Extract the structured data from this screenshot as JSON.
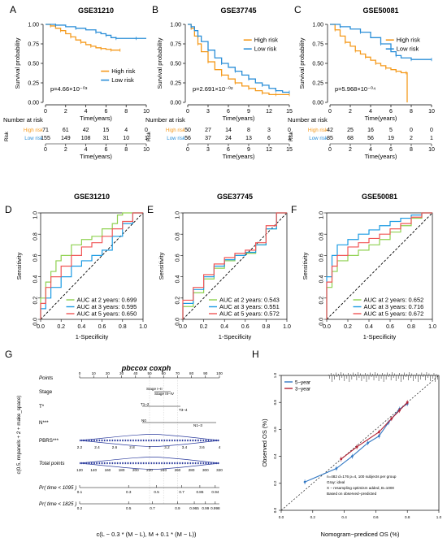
{
  "panels": [
    {
      "letter": "A",
      "title": "GSE31210",
      "xlabel": "Time(years)",
      "ylabel": "Survival probability",
      "xlim": [
        0,
        10
      ],
      "xticks": [
        0,
        2,
        4,
        6,
        8,
        10
      ],
      "ylim": [
        0,
        1
      ],
      "yticks": [
        "0.00",
        "0.25",
        "0.50",
        "0.75",
        "1.00"
      ],
      "legend": [
        "High risk",
        "Low risk"
      ],
      "pvalue": "p=4.66×10⁻⁰³",
      "risk_title": "Number at risk",
      "risk_ylabel": "Risk",
      "risk_rows": [
        {
          "label": "High risk",
          "values": [
            71,
            61,
            42,
            15,
            4,
            0
          ]
        },
        {
          "label": "Low risk",
          "values": [
            155,
            149,
            108,
            31,
            10,
            1
          ]
        }
      ]
    },
    {
      "letter": "B",
      "title": "GSE37745",
      "xlabel": "Time(years)",
      "ylabel": "Survival probability",
      "xlim": [
        0,
        15
      ],
      "xticks": [
        0,
        3,
        6,
        9,
        12,
        15
      ],
      "ylim": [
        0,
        1
      ],
      "yticks": [
        "0.00",
        "0.25",
        "0.50",
        "0.75",
        "1.00"
      ],
      "legend": [
        "High risk",
        "Low risk"
      ],
      "pvalue": "p=2.691×10⁻⁰²",
      "risk_title": "Number at risk",
      "risk_ylabel": "Risk",
      "risk_rows": [
        {
          "label": "High risk",
          "values": [
            50,
            27,
            14,
            8,
            3,
            0
          ]
        },
        {
          "label": "Low risk",
          "values": [
            56,
            37,
            24,
            13,
            6,
            1
          ]
        }
      ]
    },
    {
      "letter": "C",
      "title": "GSE50081",
      "xlabel": "Time(years)",
      "ylabel": "Survival probability",
      "xlim": [
        0,
        10
      ],
      "xticks": [
        0,
        2,
        4,
        6,
        8,
        10
      ],
      "ylim": [
        0,
        1
      ],
      "yticks": [
        "0.00",
        "0.25",
        "0.50",
        "0.75",
        "1.00"
      ],
      "legend": [
        "High risk",
        "Low risk"
      ],
      "pvalue": "p=5.968×10⁻⁰⁴",
      "risk_title": "Number at risk",
      "risk_ylabel": "Risk",
      "risk_rows": [
        {
          "label": "High risk",
          "values": [
            42,
            25,
            16,
            5,
            0,
            0
          ]
        },
        {
          "label": "Low risk",
          "values": [
            85,
            68,
            56,
            19,
            2,
            1
          ]
        }
      ]
    }
  ],
  "roc_panels": [
    {
      "letter": "D",
      "title": "GSE31210",
      "xlabel": "1-Specificity",
      "ylabel": "Sensitivity",
      "ticks": [
        "0.0",
        "0.2",
        "0.4",
        "0.6",
        "0.8",
        "1.0"
      ],
      "auc": [
        "AUC at 2 years: 0.699",
        "AUC at 3 years: 0.595",
        "AUC at 5 years: 0.650"
      ]
    },
    {
      "letter": "E",
      "title": "GSE37745",
      "xlabel": "1-Specificity",
      "ylabel": "Sensitivity",
      "ticks": [
        "0.0",
        "0.2",
        "0.4",
        "0.6",
        "0.8",
        "1.0"
      ],
      "auc": [
        "AUC at 2 years: 0.543",
        "AUC at 3 years: 0.551",
        "AUC at 5 years: 0.572"
      ]
    },
    {
      "letter": "F",
      "title": "GSE50081",
      "xlabel": "1-Specificity",
      "ylabel": "Sensitivity",
      "ticks": [
        "0.0",
        "0.2",
        "0.4",
        "0.6",
        "0.8",
        "1.0"
      ],
      "auc": [
        "AUC at 2 years: 0.652",
        "AUC at 3 years: 0.716",
        "AUC at 5 years: 0.672"
      ]
    }
  ],
  "nomogram": {
    "letter": "G",
    "title": "pbccox coxph",
    "ylabel": "c(0.5, nnpanels + 2 + make_space)",
    "xlabel": "c(L − 0.3 * (M − L), M + 0.1 * (M − L))",
    "rows": {
      "points": {
        "label": "Points",
        "ticks": [
          "0",
          "10",
          "20",
          "30",
          "40",
          "50",
          "60",
          "70",
          "80",
          "90",
          "100"
        ]
      },
      "stage": {
        "label": "Stage",
        "ticks": [
          "Stage I–II",
          "Stage III–IV"
        ]
      },
      "t": {
        "label": "T*",
        "ticks": [
          "T1–2",
          "T3–4"
        ]
      },
      "n": {
        "label": "N***",
        "ticks": [
          "N0",
          "N1–3"
        ]
      },
      "pbrs": {
        "label": "PBRS***",
        "ticks": [
          "2.2",
          "2.4",
          "2.6",
          "2.8",
          "3",
          "3.2",
          "3.4",
          "3.6",
          "4"
        ]
      },
      "total": {
        "label": "Total points",
        "ticks": [
          "120",
          "140",
          "160",
          "180",
          "200",
          "220",
          "240",
          "260",
          "280",
          "300",
          "320"
        ]
      },
      "pr1095": {
        "label": "Pr( time < 1095 )",
        "ticks": [
          "0.1",
          "0.3",
          "0.5",
          "0.7",
          "0.86",
          "0.94"
        ]
      },
      "pr1825": {
        "label": "Pr( time < 1825 )",
        "ticks": [
          "0.2",
          "0.5",
          "0.7",
          "0.9",
          "0.965",
          "0.99",
          "0.998"
        ]
      }
    }
  },
  "calibration": {
    "letter": "H",
    "xlabel": "Nomogram−prediced OS (%)",
    "ylabel": "Observed OS (%)",
    "ticks": [
      "0.0",
      "0.2",
      "0.4",
      "0.6",
      "0.8",
      "1.0"
    ],
    "legend": [
      "5−year",
      "3−year"
    ],
    "notes": [
      "n=482 d=176 p=4, 100 subjects per group",
      "Gray: ideal",
      "X − resampling optimism added, B=1000",
      "Based on observed−predicted"
    ]
  },
  "chart_data": [
    {
      "type": "line",
      "panel": "A",
      "title": "GSE31210",
      "xlabel": "Time(years)",
      "ylabel": "Survival probability",
      "xlim": [
        0,
        10
      ],
      "ylim": [
        0,
        1
      ],
      "series": [
        {
          "name": "High risk",
          "x": [
            0,
            0.5,
            1,
            1.5,
            2,
            2.5,
            3,
            3.5,
            4,
            4.5,
            5,
            5.5,
            6,
            6.5,
            7,
            7.4
          ],
          "values": [
            1,
            0.98,
            0.95,
            0.92,
            0.88,
            0.84,
            0.8,
            0.77,
            0.74,
            0.72,
            0.7,
            0.69,
            0.68,
            0.67,
            0.67,
            0.67
          ]
        },
        {
          "name": "Low risk",
          "x": [
            0,
            1,
            2,
            3,
            4,
            5,
            5.5,
            6,
            6.5,
            7,
            8,
            9,
            10
          ],
          "values": [
            1,
            0.99,
            0.97,
            0.95,
            0.93,
            0.9,
            0.88,
            0.86,
            0.83,
            0.82,
            0.82,
            0.82,
            0.82
          ]
        }
      ]
    },
    {
      "type": "line",
      "panel": "B",
      "title": "GSE37745",
      "xlabel": "Time(years)",
      "ylabel": "Survival probability",
      "xlim": [
        0,
        15
      ],
      "ylim": [
        0,
        1
      ],
      "series": [
        {
          "name": "High risk",
          "x": [
            0,
            0.5,
            1,
            1.5,
            2,
            3,
            4,
            5,
            6,
            7,
            8,
            9,
            10,
            11,
            12,
            13,
            14,
            15
          ],
          "values": [
            1,
            0.95,
            0.85,
            0.75,
            0.65,
            0.52,
            0.42,
            0.35,
            0.3,
            0.25,
            0.21,
            0.18,
            0.15,
            0.12,
            0.1,
            0.1,
            0.1,
            0.1
          ]
        },
        {
          "name": "Low risk",
          "x": [
            0,
            0.5,
            1,
            1.5,
            2,
            3,
            4,
            5,
            6,
            7,
            8,
            9,
            10,
            11,
            12,
            13,
            14,
            15
          ],
          "values": [
            1,
            0.97,
            0.92,
            0.85,
            0.78,
            0.67,
            0.57,
            0.5,
            0.45,
            0.4,
            0.35,
            0.3,
            0.25,
            0.22,
            0.18,
            0.15,
            0.13,
            0.13
          ]
        }
      ]
    },
    {
      "type": "line",
      "panel": "C",
      "title": "GSE50081",
      "xlabel": "Time(years)",
      "ylabel": "Survival probability",
      "xlim": [
        0,
        10
      ],
      "ylim": [
        0,
        1
      ],
      "series": [
        {
          "name": "High risk",
          "x": [
            0,
            0.5,
            1,
            1.5,
            2,
            2.5,
            3,
            3.5,
            4,
            4.5,
            5,
            5.5,
            6,
            6.5,
            7,
            7.5,
            7.6
          ],
          "values": [
            1,
            0.93,
            0.85,
            0.77,
            0.72,
            0.66,
            0.62,
            0.58,
            0.54,
            0.5,
            0.47,
            0.44,
            0.42,
            0.4,
            0.38,
            0.38,
            0
          ]
        },
        {
          "name": "Low risk",
          "x": [
            0,
            1,
            2,
            3,
            4,
            5,
            6,
            6.5,
            7,
            8,
            9,
            10
          ],
          "values": [
            1,
            0.97,
            0.94,
            0.9,
            0.83,
            0.75,
            0.65,
            0.6,
            0.57,
            0.55,
            0.55,
            0.55
          ]
        }
      ]
    },
    {
      "type": "line",
      "panel": "D",
      "title": "GSE31210",
      "xlabel": "1-Specificity",
      "ylabel": "Sensitivity",
      "xlim": [
        0,
        1
      ],
      "ylim": [
        0,
        1
      ],
      "series": [
        {
          "name": "AUC at 2 years: 0.699",
          "x": [
            0,
            0.05,
            0.1,
            0.15,
            0.2,
            0.3,
            0.4,
            0.5,
            0.6,
            0.7,
            0.75,
            0.8,
            0.85,
            0.9,
            1
          ],
          "values": [
            0,
            0.2,
            0.35,
            0.45,
            0.55,
            0.6,
            0.7,
            0.75,
            0.78,
            0.85,
            0.9,
            0.98,
            1,
            1,
            1
          ]
        },
        {
          "name": "AUC at 3 years: 0.595",
          "x": [
            0,
            0.05,
            0.1,
            0.2,
            0.3,
            0.4,
            0.5,
            0.6,
            0.7,
            0.8,
            0.9,
            1
          ],
          "values": [
            0,
            0.1,
            0.2,
            0.3,
            0.4,
            0.5,
            0.55,
            0.6,
            0.65,
            0.78,
            0.9,
            1
          ]
        },
        {
          "name": "AUC at 5 years: 0.650",
          "x": [
            0,
            0.05,
            0.1,
            0.2,
            0.3,
            0.4,
            0.5,
            0.6,
            0.7,
            0.8,
            0.9,
            1
          ],
          "values": [
            0,
            0.15,
            0.3,
            0.4,
            0.5,
            0.6,
            0.68,
            0.72,
            0.78,
            0.85,
            0.92,
            1
          ]
        }
      ]
    },
    {
      "type": "line",
      "panel": "E",
      "title": "GSE37745",
      "xlabel": "1-Specificity",
      "ylabel": "Sensitivity",
      "xlim": [
        0,
        1
      ],
      "ylim": [
        0,
        1
      ],
      "series": [
        {
          "name": "AUC at 2 years: 0.543",
          "x": [
            0,
            0.1,
            0.2,
            0.3,
            0.4,
            0.5,
            0.6,
            0.7,
            0.8,
            0.9,
            1
          ],
          "values": [
            0,
            0.12,
            0.25,
            0.38,
            0.48,
            0.55,
            0.6,
            0.62,
            0.7,
            0.85,
            1
          ]
        },
        {
          "name": "AUC at 3 years: 0.551",
          "x": [
            0,
            0.1,
            0.2,
            0.3,
            0.4,
            0.5,
            0.6,
            0.7,
            0.8,
            0.9,
            1
          ],
          "values": [
            0,
            0.15,
            0.28,
            0.4,
            0.5,
            0.56,
            0.6,
            0.63,
            0.7,
            0.85,
            1
          ]
        },
        {
          "name": "AUC at 5 years: 0.572",
          "x": [
            0,
            0.1,
            0.2,
            0.3,
            0.4,
            0.5,
            0.6,
            0.7,
            0.8,
            0.9,
            1
          ],
          "values": [
            0,
            0.18,
            0.3,
            0.42,
            0.52,
            0.58,
            0.62,
            0.65,
            0.72,
            0.88,
            1
          ]
        }
      ]
    },
    {
      "type": "line",
      "panel": "F",
      "title": "GSE50081",
      "xlabel": "1-Specificity",
      "ylabel": "Sensitivity",
      "xlim": [
        0,
        1
      ],
      "ylim": [
        0,
        1
      ],
      "series": [
        {
          "name": "AUC at 2 years: 0.652",
          "x": [
            0,
            0.05,
            0.1,
            0.2,
            0.3,
            0.4,
            0.5,
            0.6,
            0.7,
            0.8,
            0.9,
            1
          ],
          "values": [
            0,
            0.3,
            0.45,
            0.55,
            0.6,
            0.65,
            0.7,
            0.75,
            0.82,
            0.88,
            0.95,
            1
          ]
        },
        {
          "name": "AUC at 3 years: 0.716",
          "x": [
            0,
            0.05,
            0.1,
            0.2,
            0.3,
            0.4,
            0.5,
            0.6,
            0.7,
            0.8,
            0.9,
            1
          ],
          "values": [
            0,
            0.4,
            0.6,
            0.7,
            0.75,
            0.8,
            0.84,
            0.88,
            0.92,
            0.95,
            0.98,
            1
          ]
        },
        {
          "name": "AUC at 5 years: 0.672",
          "x": [
            0,
            0.05,
            0.1,
            0.2,
            0.3,
            0.4,
            0.5,
            0.6,
            0.7,
            0.8,
            0.9,
            1
          ],
          "values": [
            0,
            0.35,
            0.5,
            0.6,
            0.68,
            0.72,
            0.76,
            0.8,
            0.85,
            0.9,
            0.96,
            1
          ]
        }
      ]
    },
    {
      "type": "line",
      "panel": "H",
      "xlabel": "Nomogram−prediced OS (%)",
      "ylabel": "Observed OS (%)",
      "xlim": [
        0,
        1
      ],
      "ylim": [
        0,
        1
      ],
      "series": [
        {
          "name": "5−year",
          "x": [
            0.15,
            0.35,
            0.45,
            0.55,
            0.62,
            0.68,
            0.75,
            0.8
          ],
          "values": [
            0.21,
            0.31,
            0.4,
            0.5,
            0.55,
            0.65,
            0.75,
            0.79
          ]
        },
        {
          "name": "3−year",
          "x": [
            0.38,
            0.48,
            0.62,
            0.7,
            0.75,
            0.8
          ],
          "values": [
            0.38,
            0.47,
            0.58,
            0.68,
            0.74,
            0.8
          ]
        }
      ]
    }
  ],
  "colors": {
    "high": "#f59a1c",
    "low": "#2a8ed8",
    "green": "#8fd150",
    "blue": "#1b9be3",
    "red": "#f05656",
    "calib_blue": "#3379c4",
    "calib_red": "#b22234"
  }
}
